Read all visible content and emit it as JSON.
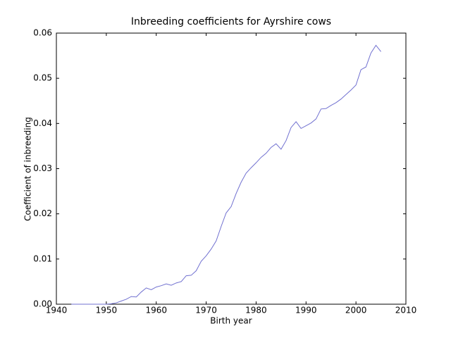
{
  "chart_data": {
    "type": "line",
    "title": "Inbreeding coefficients for Ayrshire cows",
    "xlabel": "Birth year",
    "ylabel": "Coefficient of inbreeding",
    "x": [
      1943,
      1944,
      1945,
      1946,
      1947,
      1948,
      1949,
      1950,
      1951,
      1952,
      1953,
      1954,
      1955,
      1956,
      1957,
      1958,
      1959,
      1960,
      1961,
      1962,
      1963,
      1964,
      1965,
      1966,
      1967,
      1968,
      1969,
      1970,
      1971,
      1972,
      1973,
      1974,
      1975,
      1976,
      1977,
      1978,
      1979,
      1980,
      1981,
      1982,
      1983,
      1984,
      1985,
      1986,
      1987,
      1988,
      1989,
      1990,
      1991,
      1992,
      1993,
      1994,
      1995,
      1996,
      1997,
      1998,
      1999,
      2000,
      2001,
      2002,
      2003,
      2004,
      2005
    ],
    "series": [
      {
        "color": "#7070d0",
        "values": [
          0,
          0,
          0,
          0,
          0,
          0,
          0,
          0,
          0.0001,
          0.0003,
          0.0007,
          0.0011,
          0.0017,
          0.0016,
          0.0027,
          0.0036,
          0.0032,
          0.0038,
          0.0041,
          0.0045,
          0.0042,
          0.0047,
          0.005,
          0.0063,
          0.0064,
          0.0074,
          0.0095,
          0.0107,
          0.0122,
          0.014,
          0.0172,
          0.0202,
          0.0216,
          0.0245,
          0.027,
          0.029,
          0.0302,
          0.0313,
          0.0325,
          0.0334,
          0.0347,
          0.0355,
          0.0343,
          0.0362,
          0.0391,
          0.0404,
          0.0389,
          0.0395,
          0.0401,
          0.041,
          0.0432,
          0.0433,
          0.044,
          0.0446,
          0.0454,
          0.0464,
          0.0474,
          0.0485,
          0.0519,
          0.0525,
          0.0556,
          0.0573,
          0.0559
        ]
      }
    ],
    "xlim": [
      1940,
      2010
    ],
    "xticks": [
      1940,
      1950,
      1960,
      1970,
      1980,
      1990,
      2000,
      2010
    ],
    "ylim": [
      0,
      0.06
    ],
    "yticks": [
      {
        "value": 0,
        "label": "0.00"
      },
      0.01,
      0.02,
      0.03,
      0.04,
      0.05,
      0.06
    ]
  }
}
